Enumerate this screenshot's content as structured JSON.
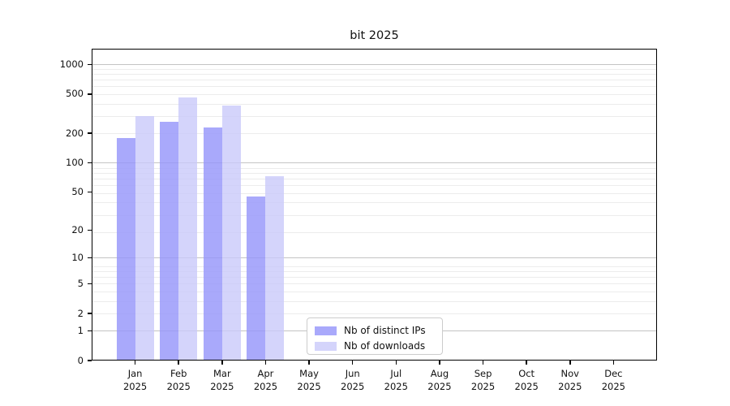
{
  "title": "bit 2025",
  "legend": {
    "items": [
      {
        "label": "Nb of distinct IPs",
        "color": "rgba(150,150,250,0.82)"
      },
      {
        "label": "Nb of downloads",
        "color": "rgba(200,200,250,0.78)"
      }
    ]
  },
  "chart_data": {
    "type": "bar",
    "title": "bit 2025",
    "categories": [
      "Jan",
      "Feb",
      "Mar",
      "Apr",
      "May",
      "Jun",
      "Jul",
      "Aug",
      "Sep",
      "Oct",
      "Nov",
      "Dec"
    ],
    "category_year": "2025",
    "series": [
      {
        "name": "Nb of distinct IPs",
        "color": "rgba(150,150,250,0.82)",
        "values": [
          180,
          260,
          230,
          45,
          0,
          0,
          0,
          0,
          0,
          0,
          0,
          0
        ]
      },
      {
        "name": "Nb of downloads",
        "color": "rgba(200,200,250,0.78)",
        "values": [
          300,
          465,
          385,
          73,
          0,
          0,
          0,
          0,
          0,
          0,
          0,
          0
        ]
      }
    ],
    "xlabel": "",
    "ylabel": "",
    "y_scale": "log10(value+1)",
    "y_ticks": [
      0,
      1,
      2,
      5,
      10,
      20,
      50,
      100,
      200,
      500,
      1000
    ],
    "y_major_gridlines": [
      1,
      10,
      100,
      1000
    ],
    "ylim": [
      0,
      1450
    ],
    "grid": "horizontal major + minor",
    "legend_position": "inside lower center",
    "colors": {
      "bar_distinct_ips": "#a9a9f6",
      "bar_downloads": "#d8d8fa",
      "major_grid": "#c4c4c4",
      "minor_grid": "#ececec",
      "axis": "#000000"
    }
  }
}
